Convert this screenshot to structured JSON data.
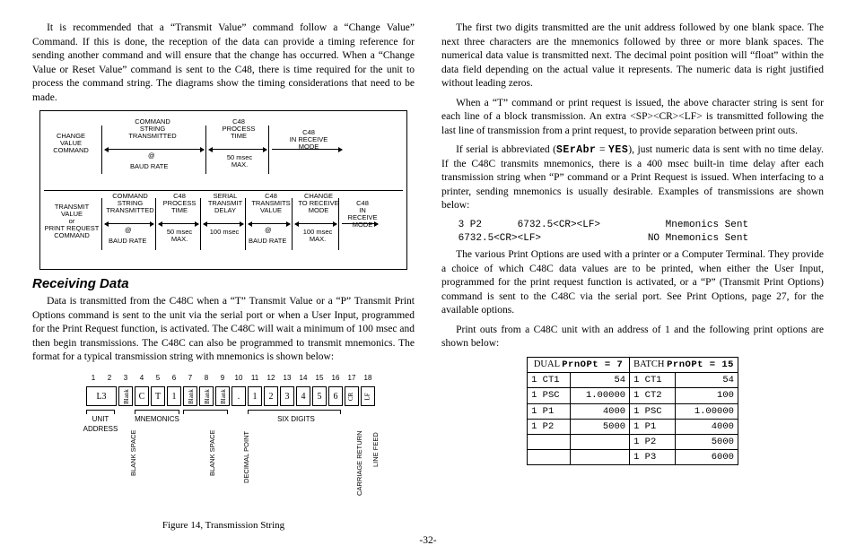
{
  "left": {
    "p1": "It is recommended that a “Transmit Value” command follow a “Change Value” Command. If this is done, the reception of the data can provide a timing reference for sending another command and will ensure that the change has occurred. When a “Change Value or Reset Value” command is sent to the C48, there is time required for the unit to process the command string. The diagrams show the timing considerations that need to be made.",
    "heading": "Receiving Data",
    "p2": "Data is transmitted from the C48C when a “T” Transmit Value or a “P” Transmit Print Options command is sent to the unit via the serial port or when a User Input, programmed for the Print Request function, is activated. The C48C will wait a minimum of 100 msec and then begin transmissions. The C48C can also be programmed to transmit mnemonics. The format for a typical transmission string with mnemonics is shown below:",
    "figcap": "Figure 14, Transmission String",
    "timing1": {
      "labels": {
        "changeValue": "CHANGE\nVALUE\nCOMMAND",
        "cmdString": "COMMAND\nSTRING\nTRANSMITTED",
        "at": "@",
        "baud": "BAUD RATE",
        "process": "C48\nPROCESS\nTIME",
        "fifty": "50 msec\nMAX.",
        "recv": "C48\nIN RECEIVE\nMODE"
      }
    },
    "timing2": {
      "labels": {
        "tvOrPrint": "TRANSMIT\nVALUE\nor\nPRINT REQUEST\nCOMMAND",
        "cmdString": "COMMAND\nSTRING\nTRANSMITTED",
        "at": "@",
        "baud": "BAUD RATE",
        "process": "C48\nPROCESS\nTIME",
        "fifty": "50 msec\nMAX.",
        "serialDelay": "SERIAL\nTRANSMIT\nDELAY",
        "hundred": "100 msec",
        "txVal": "C48\nTRANSMITS\nVALUE",
        "chgRecv": "CHANGE\nTO RECEIVE\nMODE",
        "hundred2": "100 msec\nMAX.",
        "recv": "C48\nIN\nRECEIVE\nMODE"
      }
    },
    "txstring": {
      "cols": [
        "1",
        "2",
        "3",
        "4",
        "5",
        "6",
        "7",
        "8",
        "9",
        "10",
        "11",
        "12",
        "13",
        "14",
        "15",
        "16",
        "17",
        "18"
      ],
      "cells": [
        "L3",
        "Blank",
        "C",
        "T",
        "1",
        "Blank",
        "Blank",
        "Blank",
        ".",
        "1",
        "2",
        "3",
        "4",
        "5",
        "6",
        "CR",
        "LF"
      ],
      "unitAddr": "UNIT\nADDRESS",
      "blankSpace": "BLANK SPACE",
      "mnemonics": "MNEMONICS",
      "decPoint": "DECIMAL POINT",
      "sixDigits": "SIX DIGITS",
      "cr": "CARRIAGE RETURN",
      "lf": "LINE FEED"
    }
  },
  "right": {
    "p1": "The first two digits transmitted are the unit address followed by one blank space. The next three characters are the mnemonics followed by three or more blank spaces. The numerical data value is transmitted next. The decimal point position will “float” within the data field depending on the actual value it represents. The numeric data is right justified without leading zeros.",
    "p2": "When a “T” command or print request is issued, the above character string is sent for each line of a block transmission. An extra <SP><CR><LF> is transmitted following the last line of transmission from a print request, to provide separation between print outs.",
    "p3a": "If serial is abbreviated (",
    "p3seg1": "SErAbr",
    "p3b": " = ",
    "p3seg2": "YES",
    "p3c": "), just numeric data is sent with no time delay. If the C48C transmits mnemonics, there is a 400 msec built-in time delay after each transmission string when “P” command or a Print Request is issued. When interfacing to a printer, sending mnemonics is usually desirable. Examples of transmissions are shown below:",
    "mono1": " 3 P2      6732.5<CR><LF>           Mnemonics Sent",
    "mono2": " 6732.5<CR><LF>                  NO Mnemonics Sent",
    "p4": "The various Print Options are used with a printer or a Computer Terminal. They provide a choice of which C48C data values are to be printed, when either the User Input, programmed for the print request function is activated, or a “P” (Transmit Print Options) command is sent to the C48C via the serial port. See Print Options, page 27, for the available options.",
    "p5": "Print outs from a C48C unit with an address of 1 and the following print options are shown below:",
    "table": {
      "h1a": "DUAL ",
      "h1seg": "PrnOPt = 7",
      "h2a": "BATCH ",
      "h2seg": "PrnOPt = 15",
      "rows": [
        [
          "1 CT1",
          "54",
          "1 CT1",
          "54"
        ],
        [
          "1 PSC",
          "1.00000",
          "1 CT2",
          "100"
        ],
        [
          "1 P1",
          "4000",
          "1 PSC",
          "1.00000"
        ],
        [
          "1 P2",
          "5000",
          "1 P1",
          "4000"
        ],
        [
          "",
          "",
          "1 P2",
          "5000"
        ],
        [
          "",
          "",
          "1 P3",
          "6000"
        ]
      ]
    }
  },
  "pagenum": "-32-"
}
